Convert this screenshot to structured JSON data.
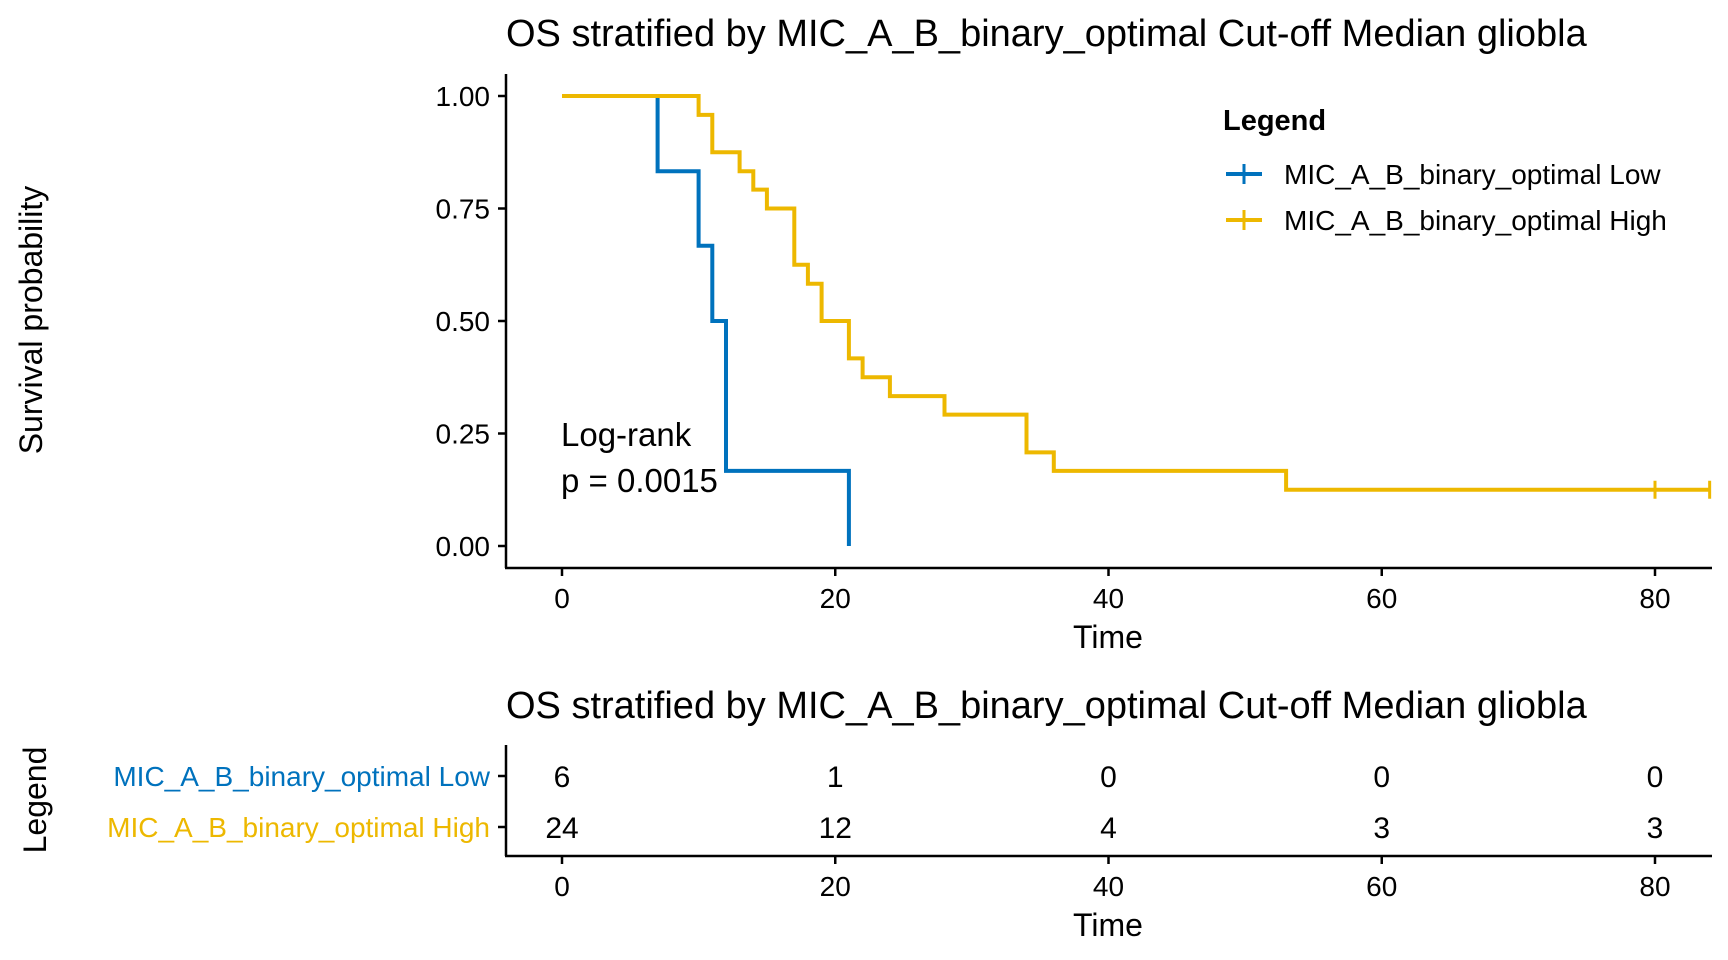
{
  "km_plot": {
    "title": "OS stratified by MIC_A_B_binary_optimal Cut-off Median gliobla",
    "xlabel": "Time",
    "ylabel": "Survival probability",
    "x_ticks": [
      "0",
      "20",
      "40",
      "60",
      "80"
    ],
    "y_ticks": [
      "0.00",
      "0.25",
      "0.50",
      "0.75",
      "1.00"
    ],
    "legend_title": "Legend",
    "legend_position": "top-right",
    "pvalue_label": "Log-rank",
    "pvalue_text": "p = 0.0015"
  },
  "risk_table": {
    "title": "OS stratified by MIC_A_B_binary_optimal Cut-off Median gliobla",
    "ylabel": "Legend",
    "xlabel": "Time",
    "x_ticks": [
      "0",
      "20",
      "40",
      "60",
      "80"
    ]
  },
  "chart_data": [
    {
      "type": "line",
      "subtype": "kaplan-meier",
      "title": "OS stratified by MIC_A_B_binary_optimal Cut-off Median gliobla",
      "xlabel": "Time",
      "ylabel": "Survival probability",
      "xlim": [
        0,
        84
      ],
      "ylim": [
        0,
        1
      ],
      "x_ticks": [
        0,
        20,
        40,
        60,
        80
      ],
      "y_ticks": [
        0,
        0.25,
        0.5,
        0.75,
        1.0
      ],
      "grid": false,
      "legend": "top-right",
      "series": [
        {
          "name": "MIC_A_B_binary_optimal Low",
          "color": "#0072BD",
          "steps": [
            [
              0,
              1.0
            ],
            [
              7,
              0.833
            ],
            [
              10,
              0.667
            ],
            [
              11,
              0.5
            ],
            [
              12,
              0.167
            ],
            [
              21,
              0.0
            ]
          ],
          "end": 21,
          "censored": []
        },
        {
          "name": "MIC_A_B_binary_optimal High",
          "color": "#EDB800",
          "steps": [
            [
              0,
              1.0
            ],
            [
              10,
              0.958
            ],
            [
              11,
              0.875
            ],
            [
              13,
              0.833
            ],
            [
              14,
              0.792
            ],
            [
              15,
              0.75
            ],
            [
              17,
              0.625
            ],
            [
              18,
              0.583
            ],
            [
              19,
              0.5
            ],
            [
              21,
              0.417
            ],
            [
              22,
              0.375
            ],
            [
              24,
              0.333
            ],
            [
              28,
              0.292
            ],
            [
              34,
              0.208
            ],
            [
              36,
              0.167
            ],
            [
              53,
              0.125
            ]
          ],
          "end": 84,
          "censored": [
            80,
            84
          ]
        }
      ],
      "annotations": [
        "Log-rank",
        "p = 0.0015"
      ]
    },
    {
      "type": "table",
      "title": "OS stratified by MIC_A_B_binary_optimal Cut-off Median gliobla",
      "xlabel": "Time",
      "ylabel": "Legend",
      "x": [
        0,
        20,
        40,
        60,
        80
      ],
      "rows": [
        {
          "name": "MIC_A_B_binary_optimal Low",
          "color": "#0072BD",
          "values": [
            6,
            1,
            0,
            0,
            0
          ]
        },
        {
          "name": "MIC_A_B_binary_optimal High",
          "color": "#EDB800",
          "values": [
            24,
            12,
            4,
            3,
            3
          ]
        }
      ]
    }
  ]
}
